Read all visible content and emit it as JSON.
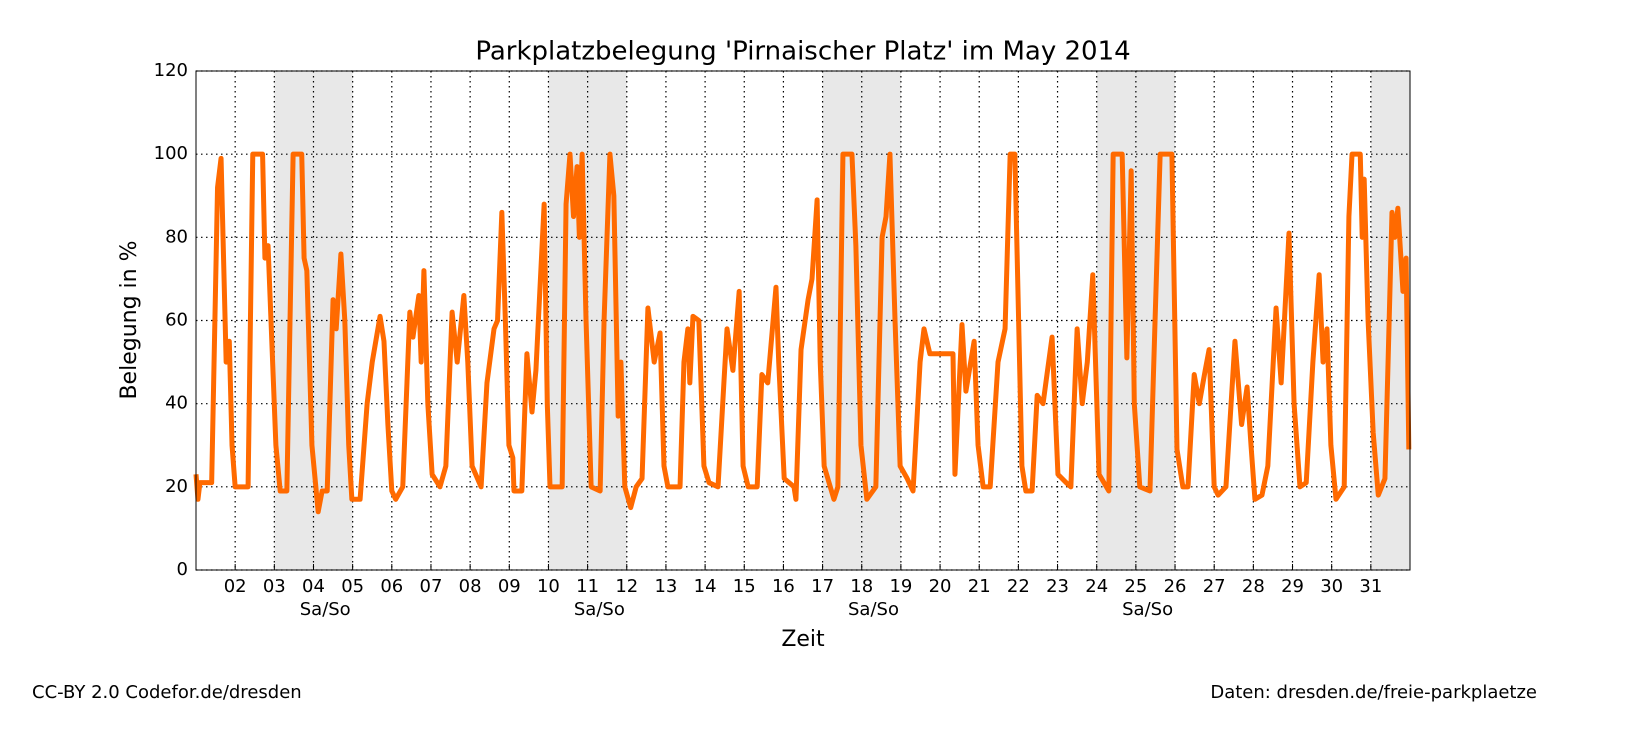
{
  "chart_data": {
    "type": "line",
    "title": "Parkplatzbelegung 'Pirnaischer Platz' im May 2014",
    "xlabel": "Zeit",
    "ylabel": "Belegung in %",
    "x": [
      1.0,
      1.05,
      1.1,
      1.4,
      1.55,
      1.64,
      1.77,
      1.85,
      1.92,
      2.0,
      2.33,
      2.45,
      2.7,
      2.76,
      2.84,
      3.04,
      3.15,
      3.32,
      3.48,
      3.7,
      3.76,
      3.83,
      3.96,
      4.12,
      4.22,
      4.35,
      4.5,
      4.58,
      4.7,
      4.8,
      4.9,
      4.98,
      5.19,
      5.37,
      5.5,
      5.7,
      5.8,
      5.9,
      6.0,
      6.1,
      6.28,
      6.46,
      6.54,
      6.69,
      6.75,
      6.82,
      6.92,
      7.03,
      7.23,
      7.38,
      7.54,
      7.67,
      7.84,
      7.94,
      8.05,
      8.28,
      8.43,
      8.61,
      8.7,
      8.81,
      8.9,
      8.99,
      9.09,
      9.12,
      9.32,
      9.45,
      9.58,
      9.68,
      9.89,
      9.97,
      10.04,
      10.35,
      10.45,
      10.55,
      10.64,
      10.73,
      10.79,
      10.86,
      10.96,
      11.09,
      11.32,
      11.42,
      11.57,
      11.67,
      11.78,
      11.85,
      11.95,
      12.1,
      12.24,
      12.39,
      12.54,
      12.7,
      12.85,
      12.95,
      13.05,
      13.36,
      13.46,
      13.56,
      13.61,
      13.69,
      13.84,
      13.97,
      14.1,
      14.33,
      14.48,
      14.56,
      14.71,
      14.87,
      14.97,
      15.1,
      15.33,
      15.45,
      15.6,
      15.81,
      15.88,
      16.02,
      16.27,
      16.32,
      16.45,
      16.63,
      16.73,
      16.86,
      16.94,
      17.04,
      17.29,
      17.39,
      17.52,
      17.75,
      17.85,
      17.98,
      18.13,
      18.36,
      18.52,
      18.62,
      18.72,
      18.85,
      18.98,
      19.16,
      19.31,
      19.49,
      19.59,
      19.74,
      20.33,
      20.38,
      20.56,
      20.66,
      20.87,
      20.97,
      21.1,
      21.28,
      21.48,
      21.66,
      21.79,
      21.91,
      22.09,
      22.19,
      22.35,
      22.48,
      22.63,
      22.73,
      22.86,
      23.01,
      23.22,
      23.34,
      23.5,
      23.63,
      23.76,
      23.9,
      24.06,
      24.31,
      24.42,
      24.65,
      24.77,
      24.88,
      24.96,
      25.1,
      25.36,
      25.49,
      25.62,
      25.92,
      26.05,
      26.2,
      26.33,
      26.49,
      26.62,
      26.77,
      26.87,
      27.0,
      27.1,
      27.3,
      27.53,
      27.7,
      27.84,
      27.94,
      28.04,
      28.22,
      28.37,
      28.58,
      28.71,
      28.91,
      29.04,
      29.19,
      29.35,
      29.52,
      29.68,
      29.78,
      29.88,
      29.98,
      30.11,
      30.32,
      30.44,
      30.52,
      30.73,
      30.78,
      30.83,
      30.93,
      31.06,
      31.19,
      31.36,
      31.44,
      31.54,
      31.61,
      31.69,
      31.82,
      31.9,
      31.97
    ],
    "series": [
      {
        "name": "Pirnaischer Platz",
        "color": "#ff6a00",
        "values": [
          23,
          17,
          21,
          21,
          92,
          99,
          50,
          55,
          30,
          20,
          20,
          100,
          100,
          75,
          78,
          30,
          19,
          19,
          100,
          100,
          75,
          72,
          30,
          14,
          19,
          19,
          65,
          58,
          76,
          60,
          30,
          17,
          17,
          40,
          50,
          61,
          55,
          35,
          19,
          17,
          20,
          62,
          56,
          66,
          50,
          72,
          40,
          23,
          20,
          25,
          62,
          50,
          66,
          50,
          25,
          20,
          45,
          58,
          60,
          86,
          60,
          30,
          27,
          19,
          19,
          52,
          38,
          48,
          88,
          40,
          20,
          20,
          88,
          100,
          85,
          97,
          80,
          100,
          60,
          20,
          19,
          60,
          100,
          90,
          37,
          50,
          20,
          15,
          20,
          22,
          63,
          50,
          57,
          25,
          20,
          20,
          50,
          58,
          45,
          61,
          60,
          25,
          21,
          20,
          45,
          58,
          48,
          67,
          25,
          20,
          20,
          47,
          45,
          68,
          50,
          22,
          20,
          17,
          53,
          65,
          70,
          89,
          50,
          25,
          17,
          20,
          100,
          100,
          78,
          30,
          17,
          20,
          80,
          85,
          100,
          60,
          25,
          22,
          19,
          50,
          58,
          52,
          52,
          23,
          59,
          43,
          55,
          30,
          20,
          20,
          50,
          58,
          100,
          100,
          25,
          19,
          19,
          42,
          40,
          47,
          56,
          23,
          21,
          20,
          58,
          40,
          50,
          71,
          23,
          19,
          100,
          100,
          51,
          96,
          40,
          20,
          19,
          60,
          100,
          100,
          29,
          20,
          20,
          47,
          40,
          48,
          53,
          20,
          18,
          20,
          55,
          35,
          44,
          30,
          17,
          18,
          25,
          63,
          45,
          81,
          40,
          20,
          21,
          50,
          71,
          50,
          58,
          30,
          17,
          20,
          85,
          100,
          100,
          80,
          94,
          60,
          33,
          18,
          22,
          50,
          86,
          80,
          87,
          67,
          75,
          29
        ]
      }
    ],
    "xlim": [
      1,
      32
    ],
    "ylim": [
      0,
      120
    ],
    "xticks": [
      {
        "value": 2,
        "label": "02"
      },
      {
        "value": 3,
        "label": "03"
      },
      {
        "value": 4,
        "label": "04"
      },
      {
        "value": 5,
        "label": "05"
      },
      {
        "value": 6,
        "label": "06"
      },
      {
        "value": 7,
        "label": "07"
      },
      {
        "value": 8,
        "label": "08"
      },
      {
        "value": 9,
        "label": "09"
      },
      10,
      11,
      12,
      13,
      14,
      15,
      16,
      17,
      18,
      19,
      20,
      21,
      22,
      23,
      24,
      25,
      26,
      27,
      28,
      29,
      30,
      31
    ],
    "yticks": [
      0,
      20,
      40,
      60,
      80,
      100,
      120
    ],
    "grid": true,
    "shaded_spans": [
      [
        3,
        5
      ],
      [
        10,
        12
      ],
      [
        17,
        19
      ],
      [
        24,
        26
      ],
      [
        31,
        32
      ]
    ],
    "annotations": [
      {
        "text": "Sa/So",
        "x": 4.3
      },
      {
        "text": "Sa/So",
        "x": 11.3
      },
      {
        "text": "Sa/So",
        "x": 18.3
      },
      {
        "text": "Sa/So",
        "x": 25.3
      }
    ]
  },
  "footer": {
    "left": "CC-BY 2.0 Codefor.de/dresden",
    "right": "Daten: dresden.de/freie-parkplaetze"
  }
}
